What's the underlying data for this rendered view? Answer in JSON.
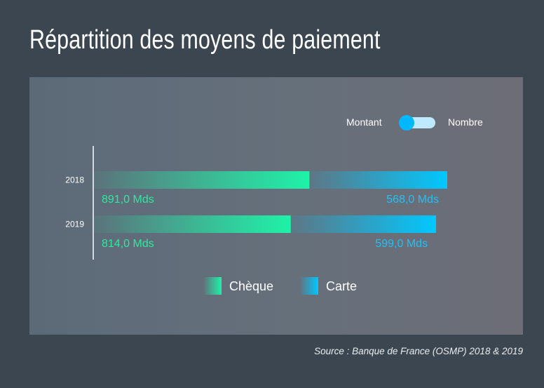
{
  "page": {
    "title": "Répartition des moyens de paiement",
    "source": "Source : Banque de France (OSMP) 2018 & 2019"
  },
  "toggle": {
    "left_label": "Montant",
    "right_label": "Nombre",
    "state": "Montant"
  },
  "colors": {
    "cheque": "#1ef2a8",
    "carte": "#00c8ff",
    "cheque_label": "#2ee8a0",
    "carte_label": "#22c0f5"
  },
  "chart_data": {
    "type": "bar",
    "orientation": "horizontal",
    "stacked": true,
    "categories": [
      "2018",
      "2019"
    ],
    "series": [
      {
        "name": "Chèque",
        "values": [
          891.0,
          814.0
        ],
        "labels": [
          "891,0 Mds",
          "814,0 Mds"
        ]
      },
      {
        "name": "Carte",
        "values": [
          568.0,
          599.0
        ],
        "labels": [
          "568,0 Mds",
          "599,0 Mds"
        ]
      }
    ],
    "xlim": [
      0,
      1459
    ],
    "legend": "bottom-center",
    "grid": false
  }
}
